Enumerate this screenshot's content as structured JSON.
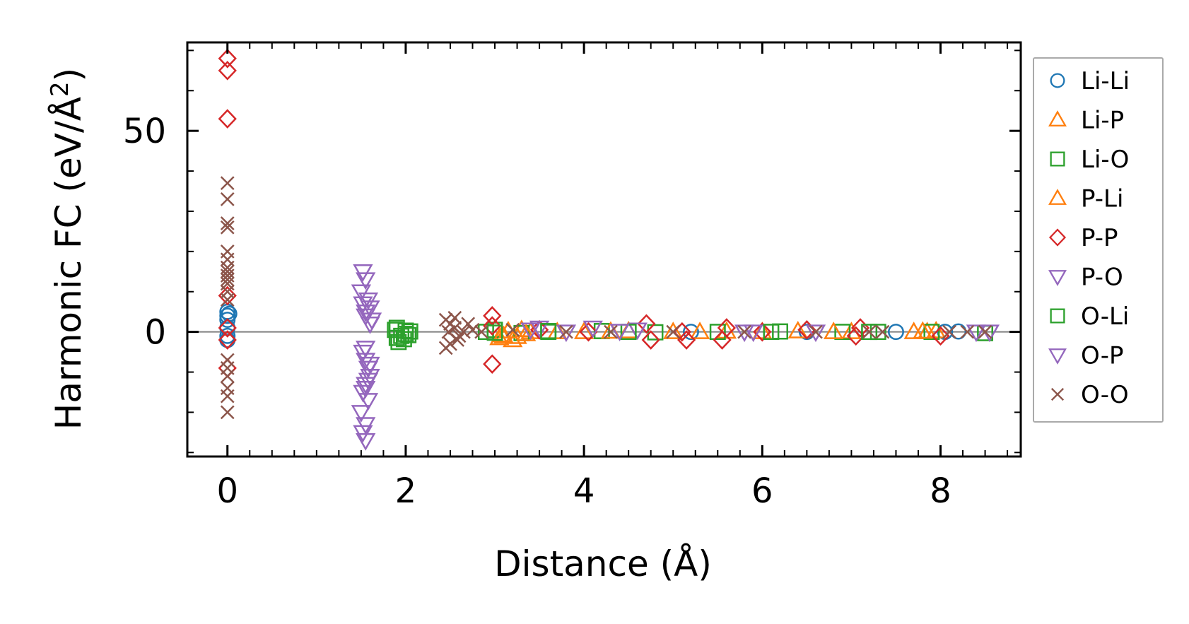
{
  "chart_data": {
    "type": "scatter",
    "xlabel": "Distance (Å)",
    "ylabel_main": "Harmonic FC (eV/Å",
    "ylabel_sup": "2",
    "ylabel_close": ")",
    "xlim": [
      -0.45,
      8.9
    ],
    "ylim": [
      -31,
      72
    ],
    "x_ticks": [
      0,
      2,
      4,
      6,
      8
    ],
    "y_ticks": [
      0,
      50
    ],
    "x_tick_labels": [
      "0",
      "2",
      "4",
      "6",
      "8"
    ],
    "y_tick_labels": [
      "0",
      "50"
    ],
    "zero_line": true,
    "grid": false,
    "legend_position": "outside-right",
    "series": [
      {
        "name": "Li-Li",
        "marker": "circle",
        "color": "#1f77b4",
        "points": [
          [
            0,
            5
          ],
          [
            0,
            4
          ],
          [
            0,
            3
          ],
          [
            0,
            1
          ],
          [
            0,
            -1
          ],
          [
            0,
            -2
          ],
          [
            0.02,
            4.5
          ],
          [
            8.05,
            0.0
          ],
          [
            8.2,
            0.1
          ],
          [
            7.5,
            0.0
          ],
          [
            6.5,
            0.0
          ],
          [
            5.2,
            0.0
          ]
        ]
      },
      {
        "name": "Li-P",
        "marker": "triangle-up",
        "color": "#ff7f0e",
        "points": [
          [
            3.05,
            -1.5
          ],
          [
            3.1,
            -1
          ],
          [
            3.2,
            -2
          ],
          [
            3.25,
            -1.2
          ],
          [
            3.3,
            0.5
          ],
          [
            3.4,
            0
          ],
          [
            4.0,
            0
          ],
          [
            4.5,
            0.2
          ],
          [
            5.0,
            0
          ],
          [
            5.6,
            0.1
          ],
          [
            6.0,
            0
          ],
          [
            6.4,
            0.2
          ],
          [
            7.0,
            0
          ],
          [
            7.7,
            0
          ],
          [
            7.85,
            0
          ],
          [
            7.95,
            0.2
          ]
        ]
      },
      {
        "name": "Li-O",
        "marker": "square",
        "color": "#2ca02c",
        "points": [
          [
            1.88,
            0.5
          ],
          [
            1.92,
            -2.5
          ],
          [
            1.95,
            -1
          ],
          [
            2.0,
            0.3
          ],
          [
            2.03,
            -0.8
          ],
          [
            1.9,
            1
          ],
          [
            1.98,
            -1.8
          ],
          [
            2.05,
            0.1
          ],
          [
            2.9,
            0
          ],
          [
            3.0,
            0.5
          ],
          [
            3.3,
            -0.3
          ],
          [
            3.6,
            0
          ],
          [
            4.2,
            0.2
          ],
          [
            4.8,
            -0.1
          ],
          [
            5.5,
            0
          ],
          [
            6.2,
            0.1
          ],
          [
            6.9,
            0
          ],
          [
            7.3,
            0
          ],
          [
            7.9,
            0
          ],
          [
            8.5,
            -0.3
          ]
        ]
      },
      {
        "name": "P-Li",
        "marker": "triangle-up",
        "color": "#ff7f0e",
        "points": [
          [
            3.08,
            -0.8
          ],
          [
            3.15,
            0.2
          ],
          [
            3.35,
            -0.5
          ],
          [
            3.7,
            0
          ],
          [
            4.3,
            0.1
          ],
          [
            5.3,
            0
          ],
          [
            6.8,
            0
          ],
          [
            7.8,
            0.1
          ]
        ]
      },
      {
        "name": "P-P",
        "marker": "diamond",
        "color": "#d62728",
        "points": [
          [
            0,
            68
          ],
          [
            0,
            65
          ],
          [
            0,
            53
          ],
          [
            0,
            9
          ],
          [
            0,
            1
          ],
          [
            0,
            -2
          ],
          [
            0,
            -9
          ],
          [
            2.97,
            4
          ],
          [
            2.97,
            1.5
          ],
          [
            2.97,
            -8
          ],
          [
            3.5,
            0.5
          ],
          [
            4.05,
            0
          ],
          [
            4.7,
            2
          ],
          [
            4.75,
            -2
          ],
          [
            5.1,
            0
          ],
          [
            5.15,
            -2
          ],
          [
            5.55,
            -2
          ],
          [
            5.6,
            1
          ],
          [
            6.0,
            0
          ],
          [
            6.5,
            0.5
          ],
          [
            7.05,
            -1
          ],
          [
            7.1,
            1
          ],
          [
            8.0,
            -1
          ]
        ]
      },
      {
        "name": "P-O",
        "marker": "triangle-down",
        "color": "#9467bd",
        "points": [
          [
            1.52,
            15
          ],
          [
            1.55,
            13
          ],
          [
            1.5,
            10
          ],
          [
            1.58,
            8
          ],
          [
            1.6,
            6
          ],
          [
            1.55,
            4
          ],
          [
            1.62,
            3
          ],
          [
            1.52,
            -5
          ],
          [
            1.55,
            -7
          ],
          [
            1.58,
            -9
          ],
          [
            1.6,
            -11
          ],
          [
            1.55,
            -13
          ],
          [
            1.52,
            -15
          ],
          [
            1.58,
            -17
          ],
          [
            1.5,
            -20
          ],
          [
            1.55,
            -23
          ],
          [
            1.52,
            -25
          ],
          [
            1.55,
            -27
          ],
          [
            3.5,
            1
          ],
          [
            4.1,
            1
          ],
          [
            4.6,
            0.5
          ],
          [
            5.8,
            0
          ],
          [
            6.6,
            0
          ],
          [
            8.4,
            0
          ]
        ]
      },
      {
        "name": "O-Li",
        "marker": "square",
        "color": "#2ca02c",
        "points": [
          [
            1.9,
            -1.5
          ],
          [
            2.0,
            -0.5
          ],
          [
            3.0,
            -0.2
          ],
          [
            3.6,
            0.2
          ],
          [
            4.5,
            0
          ],
          [
            6.1,
            0
          ],
          [
            7.2,
            0
          ]
        ]
      },
      {
        "name": "O-P",
        "marker": "triangle-down",
        "color": "#9467bd",
        "points": [
          [
            1.52,
            7
          ],
          [
            1.55,
            5
          ],
          [
            1.6,
            2
          ],
          [
            1.55,
            -4
          ],
          [
            1.6,
            -8
          ],
          [
            1.58,
            -12
          ],
          [
            1.55,
            -14
          ],
          [
            3.4,
            0.5
          ],
          [
            3.8,
            0
          ],
          [
            4.4,
            0.2
          ],
          [
            5.9,
            0
          ],
          [
            8.55,
            0
          ]
        ]
      },
      {
        "name": "O-O",
        "marker": "x",
        "color": "#8c564b",
        "points": [
          [
            0,
            37
          ],
          [
            0,
            33
          ],
          [
            0,
            27
          ],
          [
            0,
            26
          ],
          [
            0,
            20
          ],
          [
            0,
            18
          ],
          [
            0,
            16
          ],
          [
            0,
            15
          ],
          [
            0,
            14
          ],
          [
            0,
            13
          ],
          [
            0,
            12
          ],
          [
            0,
            10
          ],
          [
            0,
            8
          ],
          [
            0,
            -7
          ],
          [
            0,
            -9
          ],
          [
            0,
            -11
          ],
          [
            0,
            -14
          ],
          [
            0,
            -16
          ],
          [
            0,
            -20
          ],
          [
            2.45,
            3
          ],
          [
            2.5,
            2
          ],
          [
            2.55,
            1
          ],
          [
            2.6,
            -1
          ],
          [
            2.5,
            -3
          ],
          [
            2.45,
            -4
          ],
          [
            2.55,
            3.5
          ],
          [
            2.65,
            0
          ],
          [
            2.7,
            2
          ],
          [
            2.48,
            0
          ],
          [
            2.58,
            -2
          ],
          [
            2.75,
            0.5
          ],
          [
            2.85,
            0
          ],
          [
            3.2,
            0.5
          ],
          [
            3.8,
            0
          ],
          [
            4.3,
            0
          ],
          [
            5.0,
            0
          ],
          [
            5.8,
            0
          ],
          [
            6.6,
            0
          ],
          [
            7.2,
            0
          ],
          [
            7.35,
            0
          ],
          [
            8.1,
            0
          ],
          [
            8.3,
            0
          ],
          [
            8.5,
            0
          ]
        ]
      }
    ]
  }
}
